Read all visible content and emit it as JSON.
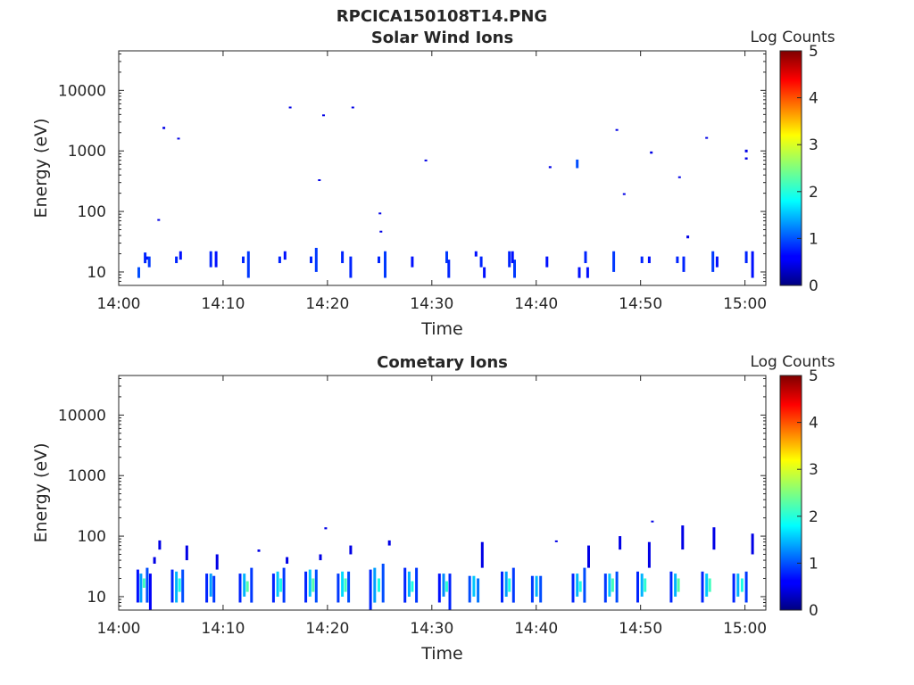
{
  "figure_title": "RPCICA150108T14.PNG",
  "chart_data": [
    {
      "type": "heatmap",
      "title": "Solar Wind Ions",
      "xlabel": "Time",
      "ylabel": "Energy (eV)",
      "yscale": "log",
      "ylim": [
        6,
        45000
      ],
      "xlim": [
        "14:00",
        "15:02"
      ],
      "xticks": [
        "14:00",
        "14:10",
        "14:20",
        "14:30",
        "14:40",
        "14:50",
        "15:00"
      ],
      "yticks": [
        "10",
        "100",
        "1000",
        "10000"
      ],
      "colorbar": {
        "label": "Log Counts",
        "range": [
          0,
          5
        ],
        "ticks": [
          "0",
          "1",
          "2",
          "3",
          "4",
          "5"
        ],
        "colormap": "jet"
      },
      "cells": [
        [
          "14:01.8",
          8,
          12,
          1.0
        ],
        [
          "14:02.4",
          14,
          21,
          0.8
        ],
        [
          "14:02.6",
          16,
          18,
          0.7
        ],
        [
          "14:02.8",
          12,
          18,
          0.9
        ],
        [
          "14:03.7",
          70,
          75,
          0.5
        ],
        [
          "14:04.2",
          2300,
          2500,
          0.5
        ],
        [
          "14:05.4",
          14,
          18,
          0.8
        ],
        [
          "14:05.6",
          1550,
          1650,
          0.5
        ],
        [
          "14:05.8",
          16,
          22,
          0.7
        ],
        [
          "14:08.7",
          12,
          22,
          0.8
        ],
        [
          "14:09.2",
          12,
          22,
          0.7
        ],
        [
          "14:11.8",
          14,
          18,
          0.8
        ],
        [
          "14:12.3",
          8,
          22,
          0.9
        ],
        [
          "14:15.3",
          14,
          18,
          0.8
        ],
        [
          "14:15.8",
          16,
          22,
          0.7
        ],
        [
          "14:16.3",
          5200,
          5400,
          0.5
        ],
        [
          "14:18.3",
          14,
          18,
          0.8
        ],
        [
          "14:18.8",
          10,
          25,
          0.9
        ],
        [
          "14:19.1",
          320,
          340,
          0.5
        ],
        [
          "14:19.5",
          3800,
          4000,
          0.5
        ],
        [
          "14:21.3",
          14,
          22,
          0.8
        ],
        [
          "14:22.1",
          8,
          18,
          0.8
        ],
        [
          "14:22.3",
          5200,
          5400,
          0.5
        ],
        [
          "14:24.8",
          14,
          18,
          0.8
        ],
        [
          "14:24.9",
          92,
          96,
          0.5
        ],
        [
          "14:25.0",
          45,
          48,
          0.5
        ],
        [
          "14:25.4",
          8,
          22,
          0.9
        ],
        [
          "14:28.0",
          12,
          18,
          0.7
        ],
        [
          "14:29.3",
          680,
          720,
          0.5
        ],
        [
          "14:31.3",
          14,
          22,
          0.9
        ],
        [
          "14:31.5",
          8,
          16,
          0.8
        ],
        [
          "14:34.1",
          18,
          22,
          0.7
        ],
        [
          "14:34.6",
          12,
          18,
          0.8
        ],
        [
          "14:34.9",
          8,
          12,
          0.7
        ],
        [
          "14:37.3",
          12,
          22,
          0.8
        ],
        [
          "14:37.8",
          8,
          16,
          0.9
        ],
        [
          "14:37.6",
          14,
          22,
          0.7
        ],
        [
          "14:40.9",
          12,
          18,
          0.7
        ],
        [
          "14:41.2",
          520,
          560,
          0.5
        ],
        [
          "14:43.8",
          520,
          720,
          1.0
        ],
        [
          "14:44.0",
          8,
          12,
          0.7
        ],
        [
          "14:44.6",
          14,
          22,
          0.8
        ],
        [
          "14:44.8",
          8,
          12,
          0.7
        ],
        [
          "14:47.3",
          10,
          22,
          0.9
        ],
        [
          "14:47.6",
          2200,
          2300,
          0.5
        ],
        [
          "14:48.3",
          190,
          200,
          0.5
        ],
        [
          "14:50.0",
          14,
          18,
          0.8
        ],
        [
          "14:50.7",
          14,
          18,
          0.7
        ],
        [
          "14:50.9",
          900,
          980,
          0.5
        ],
        [
          "14:53.4",
          14,
          18,
          0.8
        ],
        [
          "14:53.6",
          360,
          380,
          0.5
        ],
        [
          "14:54.0",
          10,
          18,
          0.8
        ],
        [
          "14:54.4",
          36,
          40,
          0.5
        ],
        [
          "14:56.2",
          1600,
          1700,
          0.5
        ],
        [
          "14:56.8",
          10,
          22,
          0.9
        ],
        [
          "14:57.2",
          12,
          18,
          0.7
        ],
        [
          "15:00.0",
          14,
          22,
          0.8
        ],
        [
          "15:00.0",
          950,
          1050,
          0.5
        ],
        [
          "15:00.0",
          720,
          780,
          0.5
        ],
        [
          "15:00.6",
          8,
          22,
          0.7
        ]
      ]
    },
    {
      "type": "heatmap",
      "title": "Cometary Ions",
      "xlabel": "Time",
      "ylabel": "Energy (eV)",
      "yscale": "log",
      "ylim": [
        6,
        45000
      ],
      "xlim": [
        "14:00",
        "15:02"
      ],
      "xticks": [
        "14:00",
        "14:10",
        "14:20",
        "14:30",
        "14:40",
        "14:50",
        "15:00"
      ],
      "yticks": [
        "10",
        "100",
        "1000",
        "10000"
      ],
      "colorbar": {
        "label": "Log Counts",
        "range": [
          0,
          5
        ],
        "ticks": [
          "0",
          "1",
          "2",
          "3",
          "4",
          "5"
        ],
        "colormap": "jet"
      },
      "cells": [
        [
          "14:01.7",
          8,
          28,
          0.7
        ],
        [
          "14:02.0",
          8,
          24,
          1.4
        ],
        [
          "14:02.3",
          14,
          20,
          2.2
        ],
        [
          "14:02.6",
          8,
          30,
          1.0
        ],
        [
          "14:02.9",
          6,
          24,
          0.6
        ],
        [
          "14:03.3",
          35,
          45,
          0.5
        ],
        [
          "14:03.8",
          60,
          85,
          0.5
        ],
        [
          "14:05.0",
          8,
          28,
          0.8
        ],
        [
          "14:05.4",
          8,
          26,
          1.5
        ],
        [
          "14:05.7",
          12,
          20,
          2.0
        ],
        [
          "14:06.0",
          8,
          28,
          1.0
        ],
        [
          "14:06.4",
          40,
          70,
          0.5
        ],
        [
          "14:08.3",
          8,
          24,
          0.8
        ],
        [
          "14:08.7",
          10,
          24,
          1.4
        ],
        [
          "14:09.0",
          8,
          22,
          0.9
        ],
        [
          "14:09.3",
          28,
          50,
          0.5
        ],
        [
          "14:11.5",
          8,
          24,
          0.8
        ],
        [
          "14:11.9",
          10,
          24,
          1.5
        ],
        [
          "14:12.2",
          12,
          18,
          2.3
        ],
        [
          "14:12.6",
          8,
          30,
          0.9
        ],
        [
          "14:13.3",
          55,
          60,
          0.5
        ],
        [
          "14:14.7",
          8,
          24,
          0.8
        ],
        [
          "14:15.1",
          10,
          26,
          1.6
        ],
        [
          "14:15.4",
          12,
          20,
          2.0
        ],
        [
          "14:15.7",
          8,
          30,
          0.9
        ],
        [
          "14:16.0",
          35,
          45,
          0.5
        ],
        [
          "14:17.8",
          8,
          26,
          0.8
        ],
        [
          "14:18.2",
          10,
          28,
          1.6
        ],
        [
          "14:18.5",
          12,
          20,
          2.3
        ],
        [
          "14:18.8",
          8,
          28,
          1.0
        ],
        [
          "14:19.2",
          40,
          50,
          0.5
        ],
        [
          "14:19.7",
          130,
          140,
          0.5
        ],
        [
          "14:20.9",
          8,
          24,
          0.9
        ],
        [
          "14:21.3",
          10,
          26,
          1.7
        ],
        [
          "14:21.6",
          12,
          20,
          2.2
        ],
        [
          "14:21.9",
          8,
          26,
          1.0
        ],
        [
          "14:22.1",
          50,
          70,
          0.5
        ],
        [
          "14:24.0",
          6,
          28,
          0.8
        ],
        [
          "14:24.4",
          8,
          30,
          1.4
        ],
        [
          "14:24.8",
          12,
          20,
          2.0
        ],
        [
          "14:25.2",
          8,
          35,
          1.0
        ],
        [
          "14:25.8",
          70,
          85,
          0.5
        ],
        [
          "14:27.3",
          8,
          30,
          0.8
        ],
        [
          "14:27.7",
          10,
          26,
          1.5
        ],
        [
          "14:28.0",
          12,
          18,
          2.0
        ],
        [
          "14:28.4",
          8,
          30,
          0.9
        ],
        [
          "14:30.6",
          8,
          24,
          0.7
        ],
        [
          "14:31.0",
          10,
          24,
          1.3
        ],
        [
          "14:31.3",
          12,
          18,
          2.1
        ],
        [
          "14:31.6",
          6,
          24,
          0.8
        ],
        [
          "14:33.5",
          8,
          22,
          1.0
        ],
        [
          "14:33.9",
          10,
          22,
          1.6
        ],
        [
          "14:34.3",
          8,
          20,
          1.2
        ],
        [
          "14:34.7",
          30,
          80,
          0.5
        ],
        [
          "14:36.6",
          8,
          26,
          0.8
        ],
        [
          "14:37.0",
          10,
          26,
          1.4
        ],
        [
          "14:37.3",
          12,
          20,
          2.0
        ],
        [
          "14:37.7",
          8,
          30,
          0.9
        ],
        [
          "14:39.5",
          8,
          22,
          0.9
        ],
        [
          "14:39.9",
          10,
          22,
          1.5
        ],
        [
          "14:40.3",
          8,
          22,
          1.0
        ],
        [
          "14:41.8",
          80,
          85,
          0.5
        ],
        [
          "14:43.4",
          8,
          24,
          0.8
        ],
        [
          "14:43.8",
          10,
          24,
          1.5
        ],
        [
          "14:44.1",
          12,
          18,
          2.0
        ],
        [
          "14:44.5",
          8,
          30,
          1.0
        ],
        [
          "14:44.9",
          30,
          70,
          0.5
        ],
        [
          "14:46.5",
          8,
          24,
          0.9
        ],
        [
          "14:46.9",
          10,
          24,
          1.6
        ],
        [
          "14:47.2",
          12,
          20,
          2.2
        ],
        [
          "14:47.6",
          8,
          26,
          1.0
        ],
        [
          "14:47.9",
          60,
          100,
          0.5
        ],
        [
          "14:49.6",
          8,
          26,
          0.8
        ],
        [
          "14:50.0",
          10,
          24,
          1.5
        ],
        [
          "14:50.3",
          12,
          20,
          2.1
        ],
        [
          "14:50.7",
          30,
          80,
          0.5
        ],
        [
          "14:51.0",
          170,
          180,
          0.5
        ],
        [
          "14:52.8",
          8,
          26,
          0.8
        ],
        [
          "14:53.2",
          10,
          24,
          1.5
        ],
        [
          "14:53.5",
          12,
          20,
          2.3
        ],
        [
          "14:53.9",
          60,
          150,
          0.5
        ],
        [
          "14:55.8",
          8,
          26,
          0.8
        ],
        [
          "14:56.2",
          10,
          24,
          1.6
        ],
        [
          "14:56.5",
          12,
          20,
          2.2
        ],
        [
          "14:56.9",
          60,
          140,
          0.5
        ],
        [
          "14:58.8",
          8,
          24,
          0.8
        ],
        [
          "14:59.2",
          10,
          24,
          1.5
        ],
        [
          "14:59.6",
          12,
          20,
          2.0
        ],
        [
          "15:00.0",
          8,
          26,
          0.9
        ],
        [
          "15:00.6",
          50,
          110,
          0.5
        ]
      ]
    }
  ]
}
